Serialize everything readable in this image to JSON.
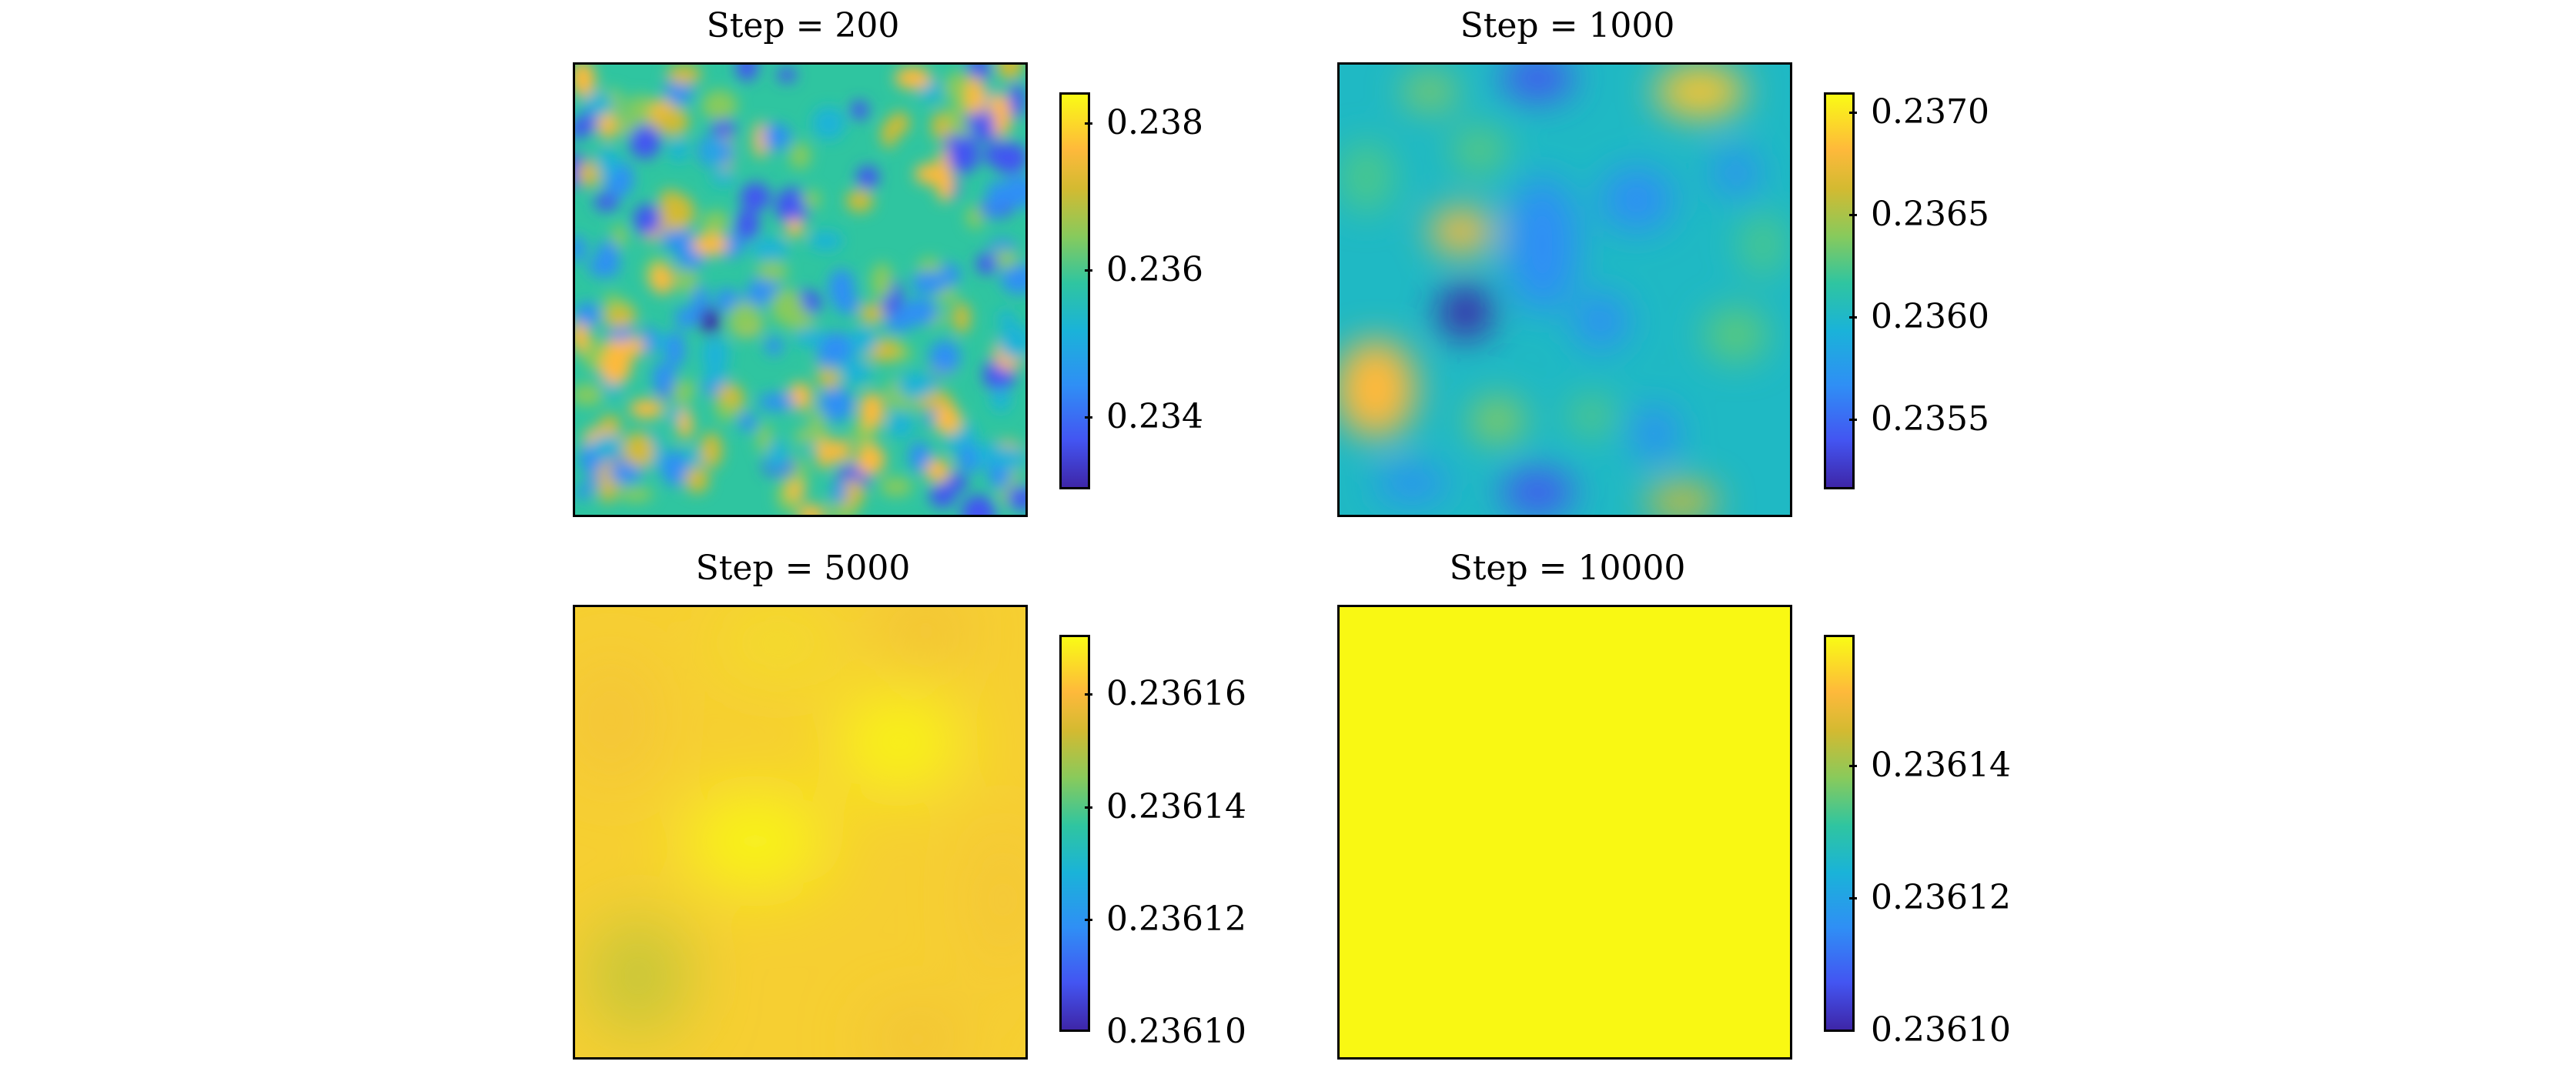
{
  "chart_data": [
    {
      "type": "heatmap",
      "title": "Step = 200",
      "colorbar": {
        "min": 0.233,
        "max": 0.2385,
        "ticks": [
          0.238,
          0.236,
          0.234
        ],
        "tick_labels": [
          "0.238",
          "0.236",
          "0.234"
        ]
      },
      "colormap": "parula",
      "pattern": "fine-grained random field"
    },
    {
      "type": "heatmap",
      "title": "Step = 1000",
      "colorbar": {
        "min": 0.23515,
        "max": 0.23712,
        "ticks": [
          0.237,
          0.2365,
          0.236,
          0.2355
        ],
        "tick_labels": [
          "0.2370",
          "0.2365",
          "0.2360",
          "0.2355"
        ]
      },
      "colormap": "parula",
      "pattern": "coarser random field"
    },
    {
      "type": "heatmap",
      "title": "Step = 5000",
      "colorbar": {
        "min": 0.2361,
        "max": 0.236172,
        "ticks": [
          0.23616,
          0.23614,
          0.23612,
          0.2361
        ],
        "tick_labels": [
          "0.23616",
          "0.23614",
          "0.23612",
          "0.23610"
        ]
      },
      "colormap": "parula",
      "pattern": "smooth, nearly uniform"
    },
    {
      "type": "heatmap",
      "title": "Step = 10000",
      "colorbar": {
        "min": 0.2361,
        "max": 0.23616,
        "ticks": [
          0.23614,
          0.23612,
          0.2361
        ],
        "tick_labels": [
          "0.23614",
          "0.23612",
          "0.23610"
        ]
      },
      "colormap": "parula",
      "pattern": "uniform"
    }
  ],
  "colors": {
    "yellow": "#f9fb15",
    "orange": "#feb93b",
    "green": "#2fc5a0",
    "blue": "#4355f2",
    "navy": "#3e26a8"
  }
}
